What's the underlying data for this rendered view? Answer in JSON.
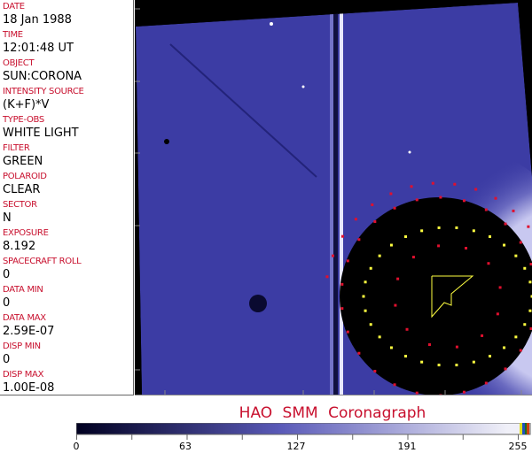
{
  "info_panel": [
    {
      "label": "DATE",
      "value": "18 Jan 1988"
    },
    {
      "label": "TIME",
      "value": "12:01:48 UT"
    },
    {
      "label": "OBJECT",
      "value": "SUN:CORONA"
    },
    {
      "label": "INTENSITY SOURCE",
      "value": "(K+F)*V"
    },
    {
      "label": "TYPE-OBS",
      "value": "WHITE LIGHT"
    },
    {
      "label": "FILTER",
      "value": "GREEN"
    },
    {
      "label": "POLAROID",
      "value": "CLEAR"
    },
    {
      "label": "SECTOR",
      "value": "N"
    },
    {
      "label": "EXPOSURE",
      "value": "8.192"
    },
    {
      "label": "SPACECRAFT ROLL",
      "value": "0"
    },
    {
      "label": "DATA MIN",
      "value": "0"
    },
    {
      "label": "DATA MAX",
      "value": "2.59E-07"
    },
    {
      "label": "DISP MIN",
      "value": "0"
    },
    {
      "label": "DISP MAX",
      "value": "1.00E-08"
    }
  ],
  "title": "HAO  SMM  Coronagraph",
  "colorbar": {
    "ticks": [
      "0",
      "63",
      "127",
      "191",
      "255"
    ],
    "min": 0,
    "max": 255,
    "colors": {
      "low": "#000020",
      "mid": "#5a5ab8",
      "high": "#f0f0f8"
    }
  },
  "colors": {
    "label": "#c8102e",
    "sky": "#3c3ca4",
    "marker_red": "#e0102e",
    "marker_yellow": "#ffff40"
  }
}
